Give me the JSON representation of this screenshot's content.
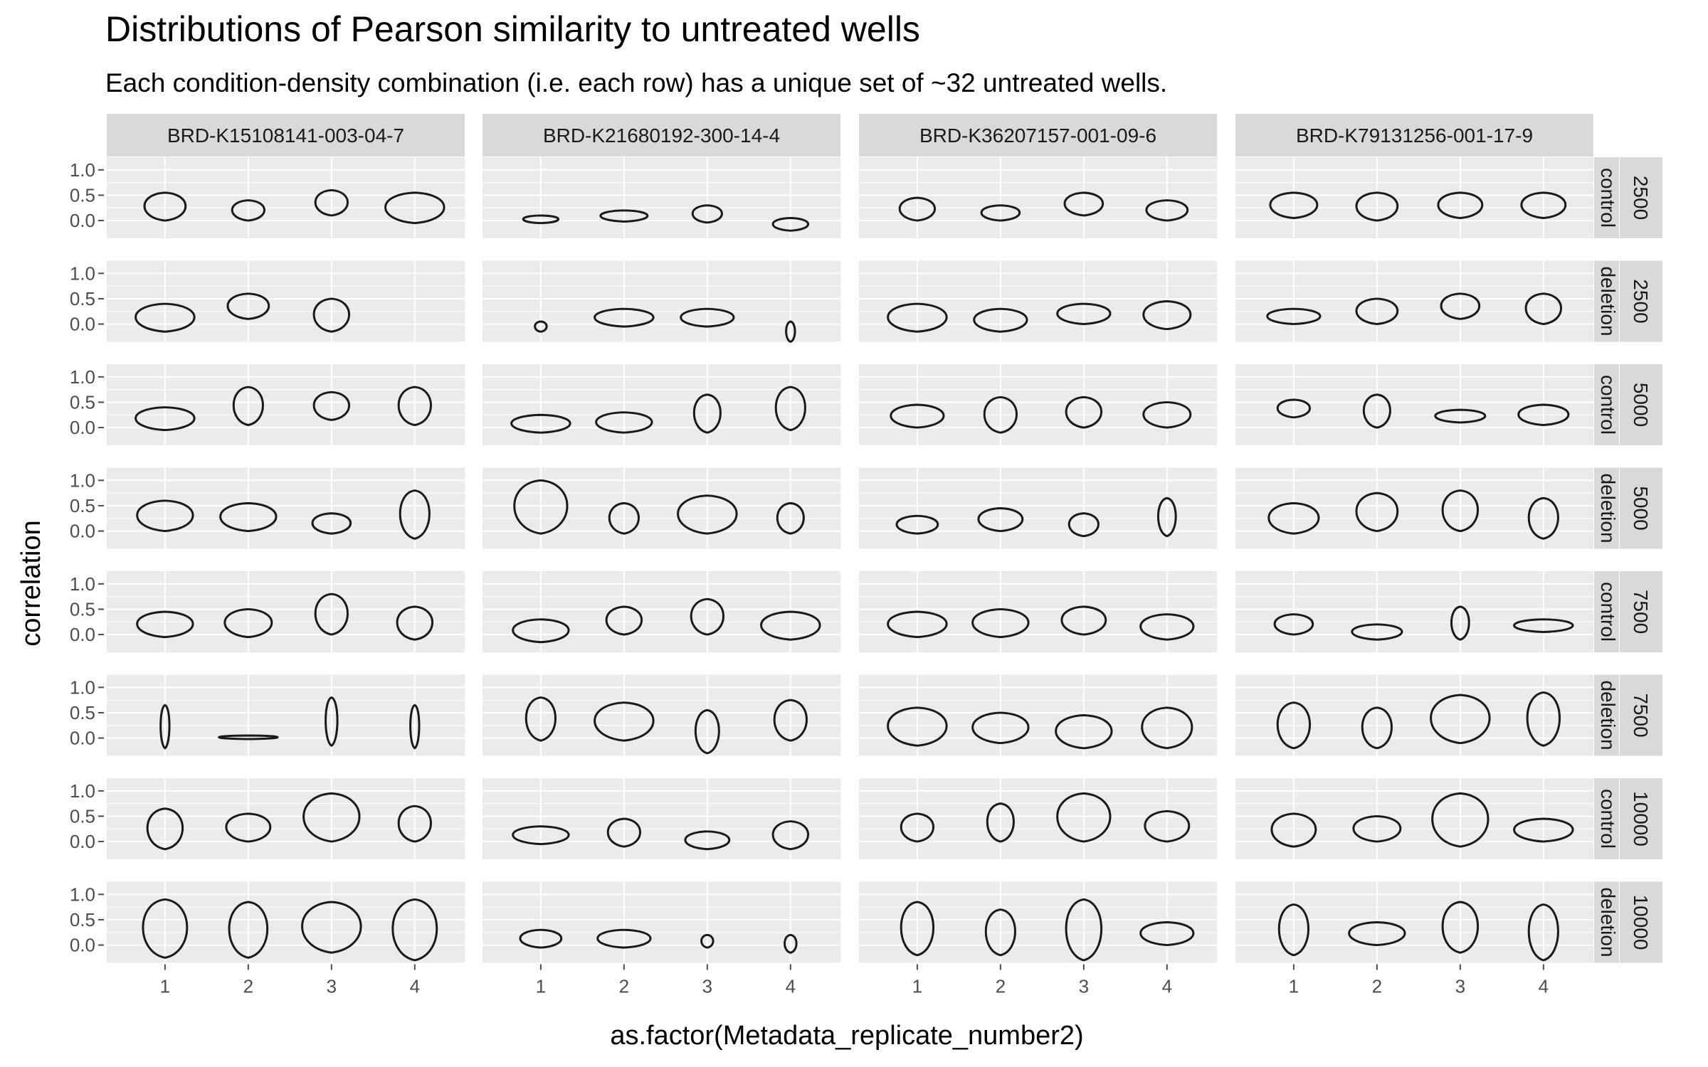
{
  "chart_data": {
    "type": "violin",
    "title": "Distributions of Pearson similarity to untreated wells",
    "subtitle": "Each condition-density combination (i.e. each row) has a unique set of ~32 untreated wells.",
    "xlabel": "as.factor(Metadata_replicate_number2)",
    "ylabel": "correlation",
    "x_categories": [
      "1",
      "2",
      "3",
      "4"
    ],
    "y_ticks": [
      "0.0",
      "0.5",
      "1.0"
    ],
    "y_tick_values": [
      0.0,
      0.5,
      1.0
    ],
    "ylim": [
      -0.35,
      1.25
    ],
    "grid": true,
    "facet_columns": [
      "BRD-K15108141-003-04-7",
      "BRD-K21680192-300-14-4",
      "BRD-K36207157-001-09-6",
      "BRD-K79131256-001-17-9"
    ],
    "facet_rows": [
      {
        "condition": "control",
        "density": "2500"
      },
      {
        "condition": "deletion",
        "density": "2500"
      },
      {
        "condition": "control",
        "density": "5000"
      },
      {
        "condition": "deletion",
        "density": "5000"
      },
      {
        "condition": "control",
        "density": "7500"
      },
      {
        "condition": "deletion",
        "density": "7500"
      },
      {
        "condition": "control",
        "density": "10000"
      },
      {
        "condition": "deletion",
        "density": "10000"
      }
    ],
    "violins": [
      [
        [
          {
            "min": 0.0,
            "max": 0.55,
            "w": 0.7
          },
          {
            "min": 0.0,
            "max": 0.4,
            "w": 0.55
          },
          {
            "min": 0.1,
            "max": 0.6,
            "w": 0.55
          },
          {
            "min": -0.05,
            "max": 0.55,
            "w": 1.0
          }
        ],
        [
          {
            "min": -0.05,
            "max": 0.1,
            "w": 0.6
          },
          {
            "min": -0.02,
            "max": 0.2,
            "w": 0.8
          },
          {
            "min": -0.04,
            "max": 0.3,
            "w": 0.5
          },
          {
            "min": -0.2,
            "max": 0.05,
            "w": 0.6
          }
        ],
        [
          {
            "min": 0.0,
            "max": 0.45,
            "w": 0.6
          },
          {
            "min": 0.0,
            "max": 0.3,
            "w": 0.65
          },
          {
            "min": 0.1,
            "max": 0.55,
            "w": 0.65
          },
          {
            "min": 0.0,
            "max": 0.4,
            "w": 0.7
          }
        ],
        [
          {
            "min": 0.05,
            "max": 0.55,
            "w": 0.8
          },
          {
            "min": 0.0,
            "max": 0.55,
            "w": 0.7
          },
          {
            "min": 0.05,
            "max": 0.55,
            "w": 0.75
          },
          {
            "min": 0.05,
            "max": 0.55,
            "w": 0.75
          }
        ]
      ],
      [
        [
          {
            "min": -0.15,
            "max": 0.4,
            "w": 1.0
          },
          {
            "min": 0.1,
            "max": 0.6,
            "w": 0.7
          },
          {
            "min": -0.15,
            "max": 0.5,
            "w": 0.6
          },
          null
        ],
        [
          {
            "min": -0.15,
            "max": 0.05,
            "w": 0.2
          },
          {
            "min": -0.05,
            "max": 0.3,
            "w": 1.0
          },
          {
            "min": -0.05,
            "max": 0.3,
            "w": 0.9
          },
          {
            "min": -0.35,
            "max": 0.05,
            "w": 0.15
          }
        ],
        [
          {
            "min": -0.15,
            "max": 0.4,
            "w": 1.0
          },
          {
            "min": -0.15,
            "max": 0.3,
            "w": 0.9
          },
          {
            "min": 0.0,
            "max": 0.4,
            "w": 0.9
          },
          {
            "min": -0.1,
            "max": 0.45,
            "w": 0.8
          }
        ],
        [
          {
            "min": 0.0,
            "max": 0.3,
            "w": 0.9
          },
          {
            "min": 0.0,
            "max": 0.5,
            "w": 0.7
          },
          {
            "min": 0.1,
            "max": 0.6,
            "w": 0.65
          },
          {
            "min": 0.0,
            "max": 0.6,
            "w": 0.6
          }
        ]
      ],
      [
        [
          {
            "min": -0.05,
            "max": 0.4,
            "w": 1.0
          },
          {
            "min": 0.05,
            "max": 0.8,
            "w": 0.5
          },
          {
            "min": 0.15,
            "max": 0.7,
            "w": 0.6
          },
          {
            "min": 0.05,
            "max": 0.8,
            "w": 0.55
          }
        ],
        [
          {
            "min": -0.1,
            "max": 0.25,
            "w": 1.0
          },
          {
            "min": -0.1,
            "max": 0.3,
            "w": 0.95
          },
          {
            "min": -0.1,
            "max": 0.65,
            "w": 0.45
          },
          {
            "min": -0.05,
            "max": 0.8,
            "w": 0.5
          }
        ],
        [
          {
            "min": 0.0,
            "max": 0.45,
            "w": 0.9
          },
          {
            "min": -0.1,
            "max": 0.6,
            "w": 0.55
          },
          {
            "min": 0.0,
            "max": 0.6,
            "w": 0.6
          },
          {
            "min": 0.0,
            "max": 0.5,
            "w": 0.8
          }
        ],
        [
          {
            "min": 0.2,
            "max": 0.55,
            "w": 0.55
          },
          {
            "min": 0.0,
            "max": 0.65,
            "w": 0.45
          },
          {
            "min": 0.1,
            "max": 0.35,
            "w": 0.85
          },
          {
            "min": 0.05,
            "max": 0.45,
            "w": 0.85
          }
        ]
      ],
      [
        [
          {
            "min": 0.0,
            "max": 0.6,
            "w": 0.95
          },
          {
            "min": 0.0,
            "max": 0.55,
            "w": 0.95
          },
          {
            "min": -0.05,
            "max": 0.35,
            "w": 0.65
          },
          {
            "min": -0.15,
            "max": 0.8,
            "w": 0.5
          }
        ],
        [
          {
            "min": -0.05,
            "max": 1.0,
            "w": 0.9
          },
          {
            "min": -0.05,
            "max": 0.55,
            "w": 0.5
          },
          {
            "min": -0.05,
            "max": 0.7,
            "w": 1.0
          },
          {
            "min": -0.05,
            "max": 0.55,
            "w": 0.45
          }
        ],
        [
          {
            "min": -0.05,
            "max": 0.3,
            "w": 0.7
          },
          {
            "min": 0.0,
            "max": 0.45,
            "w": 0.75
          },
          {
            "min": -0.1,
            "max": 0.35,
            "w": 0.5
          },
          {
            "min": -0.1,
            "max": 0.65,
            "w": 0.3
          }
        ],
        [
          {
            "min": -0.05,
            "max": 0.55,
            "w": 0.85
          },
          {
            "min": 0.0,
            "max": 0.75,
            "w": 0.7
          },
          {
            "min": 0.0,
            "max": 0.8,
            "w": 0.6
          },
          {
            "min": -0.15,
            "max": 0.65,
            "w": 0.5
          }
        ]
      ],
      [
        [
          {
            "min": -0.05,
            "max": 0.45,
            "w": 0.95
          },
          {
            "min": -0.05,
            "max": 0.5,
            "w": 0.8
          },
          {
            "min": 0.0,
            "max": 0.8,
            "w": 0.55
          },
          {
            "min": -0.1,
            "max": 0.55,
            "w": 0.6
          }
        ],
        [
          {
            "min": -0.15,
            "max": 0.3,
            "w": 0.95
          },
          {
            "min": 0.0,
            "max": 0.55,
            "w": 0.6
          },
          {
            "min": 0.0,
            "max": 0.7,
            "w": 0.55
          },
          {
            "min": -0.1,
            "max": 0.45,
            "w": 1.0
          }
        ],
        [
          {
            "min": -0.05,
            "max": 0.45,
            "w": 1.0
          },
          {
            "min": -0.05,
            "max": 0.5,
            "w": 0.95
          },
          {
            "min": 0.0,
            "max": 0.55,
            "w": 0.75
          },
          {
            "min": -0.1,
            "max": 0.4,
            "w": 0.9
          }
        ],
        [
          {
            "min": 0.0,
            "max": 0.4,
            "w": 0.65
          },
          {
            "min": -0.1,
            "max": 0.2,
            "w": 0.85
          },
          {
            "min": -0.1,
            "max": 0.55,
            "w": 0.3
          },
          {
            "min": 0.05,
            "max": 0.3,
            "w": 1.0
          }
        ]
      ],
      [
        [
          {
            "min": -0.2,
            "max": 0.65,
            "w": 0.15
          },
          {
            "min": -0.02,
            "max": 0.05,
            "w": 1.0
          },
          {
            "min": -0.15,
            "max": 0.8,
            "w": 0.2
          },
          {
            "min": -0.2,
            "max": 0.65,
            "w": 0.15
          }
        ],
        [
          {
            "min": -0.05,
            "max": 0.8,
            "w": 0.5
          },
          {
            "min": -0.05,
            "max": 0.7,
            "w": 1.0
          },
          {
            "min": -0.3,
            "max": 0.55,
            "w": 0.4
          },
          {
            "min": -0.05,
            "max": 0.75,
            "w": 0.55
          }
        ],
        [
          {
            "min": -0.15,
            "max": 0.6,
            "w": 1.0
          },
          {
            "min": -0.1,
            "max": 0.5,
            "w": 0.95
          },
          {
            "min": -0.2,
            "max": 0.45,
            "w": 0.95
          },
          {
            "min": -0.2,
            "max": 0.6,
            "w": 0.85
          }
        ],
        [
          {
            "min": -0.2,
            "max": 0.7,
            "w": 0.55
          },
          {
            "min": -0.2,
            "max": 0.6,
            "w": 0.5
          },
          {
            "min": -0.1,
            "max": 0.85,
            "w": 1.0
          },
          {
            "min": -0.15,
            "max": 0.9,
            "w": 0.55
          }
        ]
      ],
      [
        [
          {
            "min": -0.15,
            "max": 0.65,
            "w": 0.6
          },
          {
            "min": 0.0,
            "max": 0.55,
            "w": 0.75
          },
          {
            "min": 0.0,
            "max": 0.95,
            "w": 0.95
          },
          {
            "min": 0.0,
            "max": 0.7,
            "w": 0.55
          }
        ],
        [
          {
            "min": -0.05,
            "max": 0.3,
            "w": 0.95
          },
          {
            "min": -0.1,
            "max": 0.45,
            "w": 0.55
          },
          {
            "min": -0.15,
            "max": 0.2,
            "w": 0.75
          },
          {
            "min": -0.15,
            "max": 0.4,
            "w": 0.6
          }
        ],
        [
          {
            "min": 0.0,
            "max": 0.55,
            "w": 0.55
          },
          {
            "min": 0.0,
            "max": 0.75,
            "w": 0.45
          },
          {
            "min": 0.0,
            "max": 0.95,
            "w": 0.9
          },
          {
            "min": 0.0,
            "max": 0.6,
            "w": 0.75
          }
        ],
        [
          {
            "min": -0.1,
            "max": 0.55,
            "w": 0.75
          },
          {
            "min": 0.0,
            "max": 0.5,
            "w": 0.8
          },
          {
            "min": -0.1,
            "max": 0.95,
            "w": 0.95
          },
          {
            "min": 0.0,
            "max": 0.45,
            "w": 1.0
          }
        ]
      ],
      [
        [
          {
            "min": -0.25,
            "max": 0.9,
            "w": 0.75
          },
          {
            "min": -0.25,
            "max": 0.85,
            "w": 0.65
          },
          {
            "min": -0.15,
            "max": 0.85,
            "w": 1.0
          },
          {
            "min": -0.3,
            "max": 0.9,
            "w": 0.75
          }
        ],
        [
          {
            "min": -0.05,
            "max": 0.3,
            "w": 0.7
          },
          {
            "min": -0.05,
            "max": 0.3,
            "w": 0.9
          },
          {
            "min": -0.05,
            "max": 0.2,
            "w": 0.2
          },
          {
            "min": -0.15,
            "max": 0.2,
            "w": 0.2
          }
        ],
        [
          {
            "min": -0.2,
            "max": 0.85,
            "w": 0.55
          },
          {
            "min": -0.2,
            "max": 0.7,
            "w": 0.5
          },
          {
            "min": -0.3,
            "max": 0.9,
            "w": 0.6
          },
          {
            "min": 0.0,
            "max": 0.45,
            "w": 0.9
          }
        ],
        [
          {
            "min": -0.2,
            "max": 0.8,
            "w": 0.5
          },
          {
            "min": 0.0,
            "max": 0.45,
            "w": 0.95
          },
          {
            "min": -0.15,
            "max": 0.85,
            "w": 0.6
          },
          {
            "min": -0.3,
            "max": 0.8,
            "w": 0.5
          }
        ]
      ]
    ]
  }
}
